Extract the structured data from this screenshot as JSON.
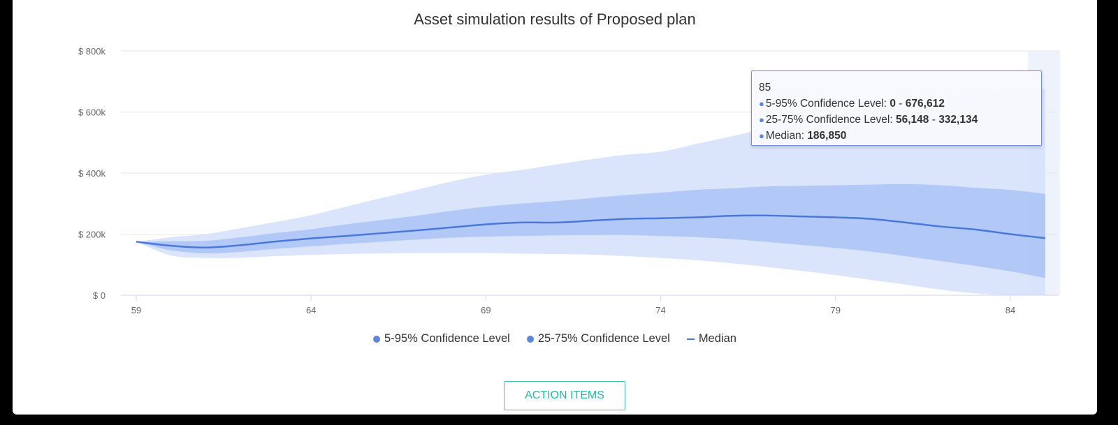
{
  "title": "Asset simulation results of Proposed plan",
  "colors": {
    "band_outer": "#d3e0fb",
    "band_inner": "#a8c1f4",
    "median": "#4a78da",
    "hover_column": "#eef2fa",
    "grid": "#e6e6e6",
    "accent": "#3bc3b3"
  },
  "chart_data": {
    "type": "area",
    "title": "Asset simulation results of Proposed plan",
    "xlabel": "",
    "ylabel": "",
    "xlim": [
      59,
      85
    ],
    "ylim": [
      0,
      800000
    ],
    "yticks": [
      {
        "value": 0,
        "label": "$ 0"
      },
      {
        "value": 200000,
        "label": "$ 200k"
      },
      {
        "value": 400000,
        "label": "$ 400k"
      },
      {
        "value": 600000,
        "label": "$ 600k"
      },
      {
        "value": 800000,
        "label": "$ 800k"
      }
    ],
    "xticks": [
      59,
      64,
      69,
      74,
      79,
      84
    ],
    "grid": true,
    "legend_position": "bottom-center",
    "x": [
      59,
      60,
      61,
      62,
      63,
      64,
      65,
      66,
      67,
      68,
      69,
      70,
      71,
      72,
      73,
      74,
      75,
      76,
      77,
      78,
      79,
      80,
      81,
      82,
      83,
      84,
      85
    ],
    "series": [
      {
        "name": "5-95% Confidence Level",
        "type": "band",
        "low": [
          175000,
          130000,
          122000,
          123000,
          128000,
          132000,
          135000,
          137000,
          138000,
          138000,
          138000,
          136000,
          135000,
          133000,
          128000,
          122000,
          115000,
          105000,
          93000,
          80000,
          66000,
          50000,
          35000,
          18000,
          6000,
          0,
          0
        ],
        "high": [
          175000,
          190000,
          200000,
          220000,
          240000,
          262000,
          290000,
          318000,
          345000,
          372000,
          395000,
          410000,
          428000,
          445000,
          460000,
          470000,
          495000,
          520000,
          545000,
          565000,
          585000,
          605000,
          620000,
          640000,
          660000,
          672000,
          676612
        ]
      },
      {
        "name": "25-75% Confidence Level",
        "type": "band",
        "low": [
          175000,
          147000,
          137000,
          142000,
          152000,
          160000,
          168000,
          175000,
          182000,
          188000,
          192000,
          194000,
          196000,
          197000,
          197000,
          194000,
          190000,
          184000,
          175000,
          165000,
          155000,
          143000,
          128000,
          112000,
          96000,
          78000,
          56148
        ],
        "high": [
          175000,
          177000,
          178000,
          190000,
          204000,
          216000,
          232000,
          246000,
          260000,
          276000,
          290000,
          300000,
          308000,
          318000,
          328000,
          336000,
          345000,
          350000,
          356000,
          358000,
          360000,
          362000,
          364000,
          360000,
          352000,
          345000,
          332134
        ]
      },
      {
        "name": "Median",
        "type": "line",
        "values": [
          175000,
          162000,
          156000,
          164000,
          176000,
          186000,
          194000,
          203000,
          212000,
          222000,
          232000,
          238000,
          238000,
          244000,
          250000,
          252000,
          255000,
          260000,
          261000,
          258000,
          255000,
          250000,
          238000,
          225000,
          215000,
          200000,
          186850
        ]
      }
    ]
  },
  "tooltip": {
    "header": "85",
    "rows": [
      {
        "label": "5-95% Confidence Level: ",
        "low": "0",
        "sep": " - ",
        "high": "676,612"
      },
      {
        "label": "25-75% Confidence Level: ",
        "low": "56,148",
        "sep": " - ",
        "high": "332,134"
      },
      {
        "label": "Median: ",
        "value": "186,850"
      }
    ]
  },
  "legend": [
    {
      "label": "5-95% Confidence Level",
      "color": "#5b86de",
      "marker": "dot"
    },
    {
      "label": "25-75% Confidence Level",
      "color": "#5b86de",
      "marker": "dot"
    },
    {
      "label": "Median",
      "color": "#4a78da",
      "marker": "line"
    }
  ],
  "action_button": {
    "label": "ACTION ITEMS"
  }
}
